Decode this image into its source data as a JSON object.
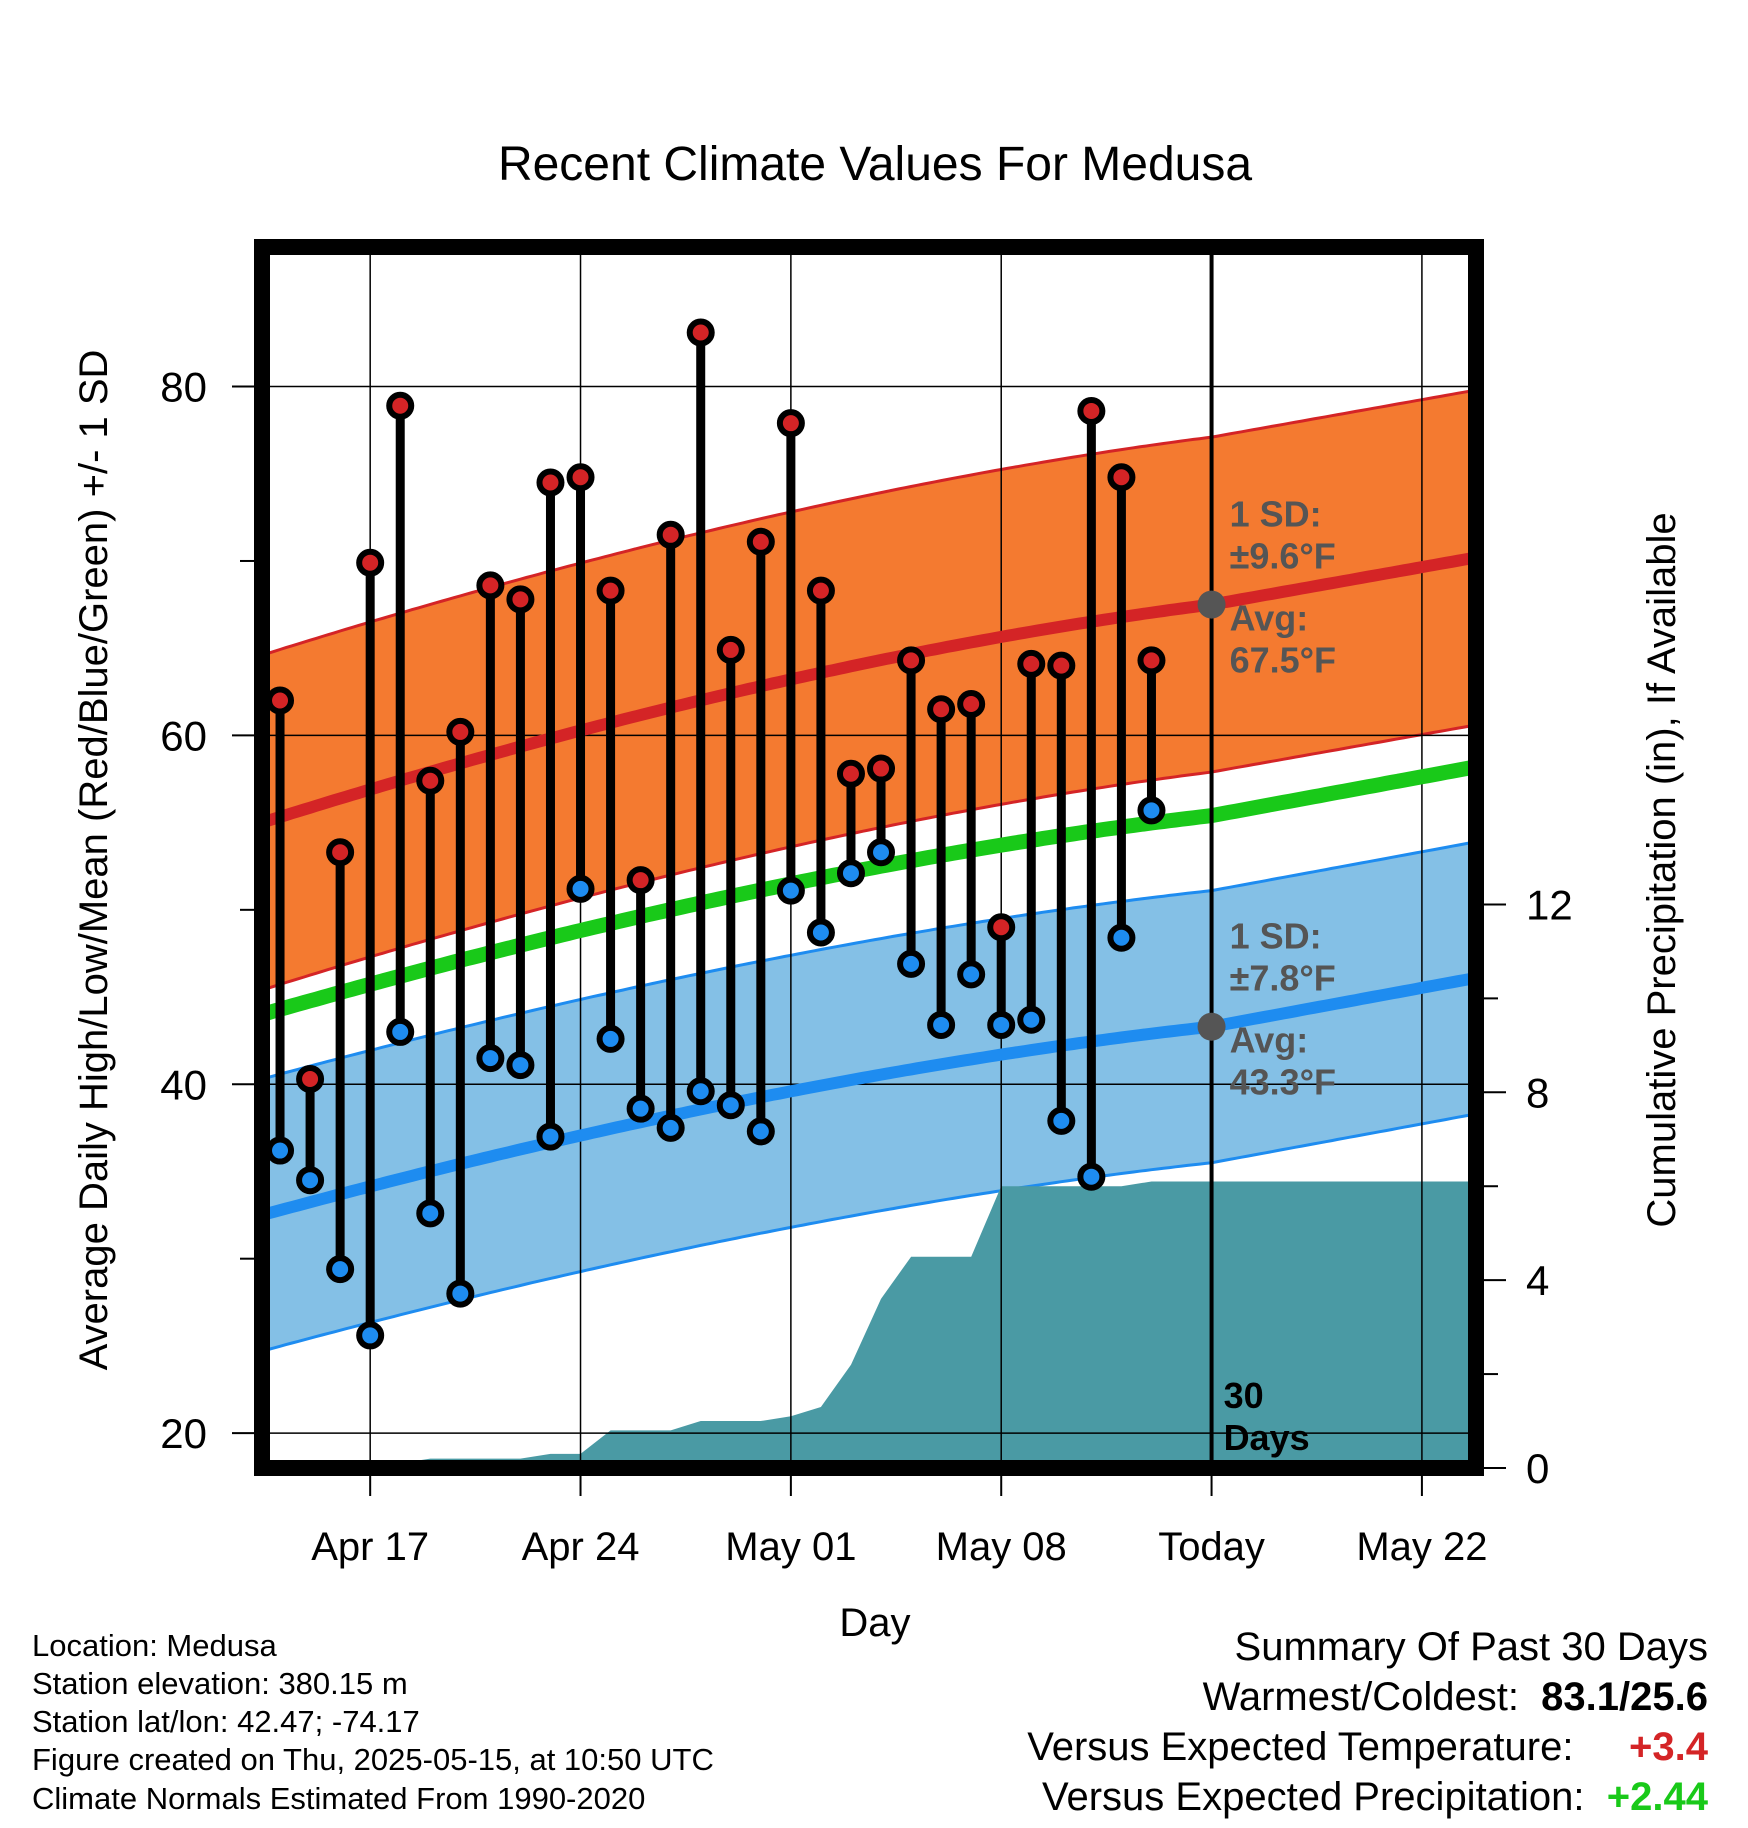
{
  "chart_data": {
    "type": "line",
    "title": "Recent Climate Values For Medusa",
    "xlabel": "Day",
    "ylabel_left": "Average Daily High/Low/Mean (Red/Blue/Green) +/- 1 SD",
    "ylabel_right": "Cumulative Precipitation (in), If Available",
    "ylim_left": [
      18,
      88
    ],
    "yticks_left": [
      20,
      40,
      60,
      80
    ],
    "ylim_right": [
      0,
      26
    ],
    "yticks_right": [
      0,
      4,
      8,
      12
    ],
    "xtick_labels": [
      {
        "day": 3,
        "label": "Apr 17"
      },
      {
        "day": 10,
        "label": "Apr 24"
      },
      {
        "day": 17,
        "label": "May 01"
      },
      {
        "day": 24,
        "label": "May 08"
      },
      {
        "day": 31,
        "label": "Today"
      },
      {
        "day": 38,
        "label": "May 22"
      }
    ],
    "days": [
      "Apr 15",
      "Apr 16",
      "Apr 17",
      "Apr 18",
      "Apr 19",
      "Apr 20",
      "Apr 21",
      "Apr 22",
      "Apr 23",
      "Apr 24",
      "Apr 25",
      "Apr 26",
      "Apr 27",
      "Apr 28",
      "Apr 29",
      "Apr 30",
      "May 01",
      "May 02",
      "May 03",
      "May 04",
      "May 05",
      "May 06",
      "May 07",
      "May 08",
      "May 09",
      "May 10",
      "May 11",
      "May 12",
      "May 13",
      "May 14"
    ],
    "daily_high": [
      62.0,
      40.3,
      53.3,
      69.9,
      78.9,
      57.4,
      60.2,
      68.6,
      67.8,
      74.5,
      74.8,
      68.3,
      51.7,
      71.5,
      83.1,
      64.9,
      71.1,
      77.9,
      68.3,
      57.8,
      58.1,
      64.3,
      61.5,
      61.8,
      49.0,
      64.1,
      64.0,
      78.6,
      74.8,
      64.3
    ],
    "daily_low": [
      36.2,
      34.5,
      29.4,
      25.6,
      43.0,
      32.6,
      28.0,
      41.5,
      41.1,
      37.0,
      51.2,
      42.6,
      38.6,
      37.5,
      39.6,
      38.8,
      37.3,
      51.1,
      48.7,
      52.1,
      53.3,
      46.9,
      43.4,
      46.3,
      43.4,
      43.7,
      37.9,
      34.7,
      48.4,
      55.7
    ],
    "normal_high": {
      "start": 55.0,
      "today": 67.5,
      "end": 70.2,
      "sd": 9.6
    },
    "normal_low": {
      "start": 32.5,
      "today": 43.3,
      "end": 46.1,
      "sd": 7.8
    },
    "normal_mean": {
      "start": 44.0,
      "today": 55.4,
      "end": 58.2
    },
    "cumulative_precip": [
      0,
      0,
      0,
      0,
      0.1,
      0.2,
      0.2,
      0.2,
      0.2,
      0.3,
      0.3,
      0.8,
      0.8,
      0.8,
      1.0,
      1.0,
      1.0,
      1.1,
      1.3,
      2.2,
      3.6,
      4.5,
      4.5,
      4.5,
      6.0,
      6.0,
      6.0,
      6.0,
      6.0,
      6.1,
      6.1
    ],
    "annotations": {
      "high_sd_label": "1 SD:",
      "high_sd_value": "±9.6°F",
      "high_avg_label": "Avg:",
      "high_avg_value": "67.5°F",
      "low_sd_label": "1 SD:",
      "low_sd_value": "±7.8°F",
      "low_avg_label": "Avg:",
      "low_avg_value": "43.3°F",
      "days_line1": "30",
      "days_line2": "Days"
    },
    "colors": {
      "high_band": "#f47a30",
      "high_line": "#d42426",
      "low_band": "#84c0e6",
      "low_line": "#1e8cf0",
      "mean_line": "#19c919",
      "precip": "#4a9aa4",
      "high_dot": "#d42426",
      "low_dot": "#1e8cf0",
      "annotation": "#555555"
    },
    "grid": true
  },
  "footer": {
    "location": "Location: Medusa",
    "elevation": "Station elevation: 380.15 m",
    "latlon": "Station lat/lon: 42.47; -74.17",
    "created": "Figure created on Thu, 2025-05-15, at 10:50 UTC",
    "normals": "Climate Normals Estimated From 1990-2020"
  },
  "summary": {
    "title": "Summary Of Past 30 Days",
    "warmest_coldest_label": "Warmest/Coldest:",
    "warmest_coldest_value": "83.1/25.6",
    "temp_label": "Versus Expected Temperature:",
    "temp_value": "+3.4",
    "temp_color": "#d42426",
    "precip_label": "Versus Expected Precipitation:",
    "precip_value": "+2.44",
    "precip_color": "#19c919"
  }
}
